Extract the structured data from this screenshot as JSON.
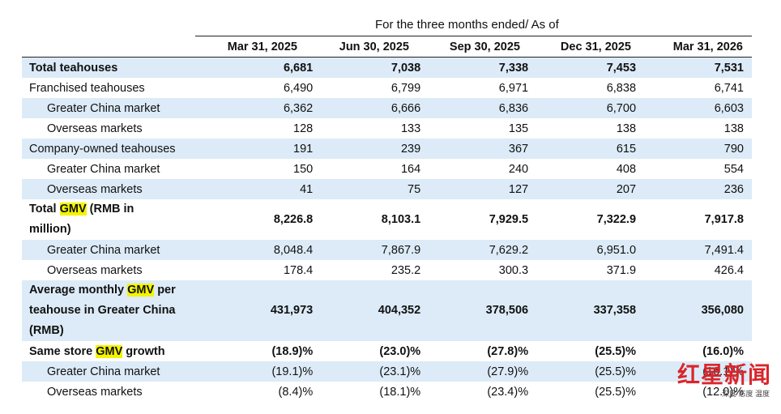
{
  "header": {
    "period_title": "For the three months ended/ As of",
    "columns": [
      "Mar 31, 2025",
      "Jun 30, 2025",
      "Sep 30, 2025",
      "Dec 31, 2025",
      "Mar 31, 2026"
    ]
  },
  "rows": [
    {
      "label": "Total teahouses",
      "values": [
        "6,681",
        "7,038",
        "7,338",
        "7,453",
        "7,531"
      ]
    },
    {
      "label": "Franchised teahouses",
      "values": [
        "6,490",
        "6,799",
        "6,971",
        "6,838",
        "6,741"
      ]
    },
    {
      "label": "Greater China market",
      "values": [
        "6,362",
        "6,666",
        "6,836",
        "6,700",
        "6,603"
      ]
    },
    {
      "label": "Overseas markets",
      "values": [
        "128",
        "133",
        "135",
        "138",
        "138"
      ]
    },
    {
      "label": "Company-owned teahouses",
      "values": [
        "191",
        "239",
        "367",
        "615",
        "790"
      ]
    },
    {
      "label": "Greater China market",
      "values": [
        "150",
        "164",
        "240",
        "408",
        "554"
      ]
    },
    {
      "label": "Overseas markets",
      "values": [
        "41",
        "75",
        "127",
        "207",
        "236"
      ]
    },
    {
      "label_pre": "Total ",
      "label_hl": "GMV",
      "label_post": " (RMB in",
      "label_line2": "million)",
      "values": [
        "8,226.8",
        "8,103.1",
        "7,929.5",
        "7,322.9",
        "7,917.8"
      ]
    },
    {
      "label": "Greater China market",
      "values": [
        "8,048.4",
        "7,867.9",
        "7,629.2",
        "6,951.0",
        "7,491.4"
      ]
    },
    {
      "label": "Overseas markets",
      "values": [
        "178.4",
        "235.2",
        "300.3",
        "371.9",
        "426.4"
      ]
    },
    {
      "label_pre": "Average monthly ",
      "label_hl": "GMV",
      "label_post": " per",
      "label_line2": "teahouse in Greater China",
      "label_line3": "(RMB)",
      "values": [
        "431,973",
        "404,352",
        "378,506",
        "337,358",
        "356,080"
      ]
    },
    {
      "label_pre": "Same store ",
      "label_hl": "GMV",
      "label_post": " growth",
      "values": [
        "(18.9)%",
        "(23.0)%",
        "(27.8)%",
        "(25.5)%",
        "(16.0)%"
      ]
    },
    {
      "label": "Greater China market",
      "values": [
        "(19.1)%",
        "(23.1)%",
        "(27.9)%",
        "(25.5)%",
        "(16.1)%"
      ]
    },
    {
      "label": "Overseas markets",
      "values": [
        "(8.4)%",
        "(18.1)%",
        "(23.4)%",
        "(25.5)%",
        "(12.0)%"
      ]
    }
  ],
  "watermark": {
    "title": "红星新闻",
    "tagline": "深度 态度 温度"
  },
  "colors": {
    "row_shade": "#dcebf7",
    "highlight": "#f4f400",
    "watermark_red": "#d9262b"
  }
}
